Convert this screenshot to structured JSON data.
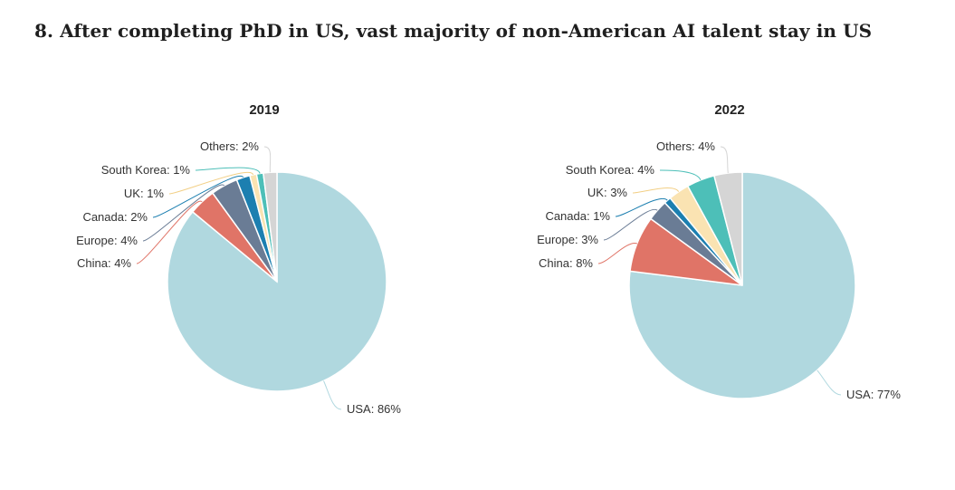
{
  "page": {
    "title": "8. After completing PhD in US, vast majority of non-American AI talent stay in US"
  },
  "chart_data": [
    {
      "type": "pie",
      "title": "2019",
      "slices": [
        {
          "label": "USA",
          "value": 86,
          "display": "USA: 86%",
          "color": "#b0d8df"
        },
        {
          "label": "China",
          "value": 4,
          "display": "China: 4%",
          "color": "#e07467"
        },
        {
          "label": "Europe",
          "value": 4,
          "display": "Europe: 4%",
          "color": "#6a7c95"
        },
        {
          "label": "Canada",
          "value": 2,
          "display": "Canada: 2%",
          "color": "#1c7fb0"
        },
        {
          "label": "UK",
          "value": 1,
          "display": "UK: 1%",
          "color": "#fae3b2"
        },
        {
          "label": "South Korea",
          "value": 1,
          "display": "South Korea: 1%",
          "color": "#4dbfb8"
        },
        {
          "label": "Others",
          "value": 2,
          "display": "Others: 2%",
          "color": "#d5d5d5"
        }
      ]
    },
    {
      "type": "pie",
      "title": "2022",
      "slices": [
        {
          "label": "USA",
          "value": 77,
          "display": "USA: 77%",
          "color": "#b0d8df"
        },
        {
          "label": "China",
          "value": 8,
          "display": "China: 8%",
          "color": "#e07467"
        },
        {
          "label": "Europe",
          "value": 3,
          "display": "Europe: 3%",
          "color": "#6a7c95"
        },
        {
          "label": "Canada",
          "value": 1,
          "display": "Canada: 1%",
          "color": "#1c7fb0"
        },
        {
          "label": "UK",
          "value": 3,
          "display": "UK: 3%",
          "color": "#fae3b2"
        },
        {
          "label": "South Korea",
          "value": 4,
          "display": "South Korea: 4%",
          "color": "#4dbfb8"
        },
        {
          "label": "Others",
          "value": 4,
          "display": "Others: 4%",
          "color": "#d5d5d5"
        }
      ]
    }
  ]
}
